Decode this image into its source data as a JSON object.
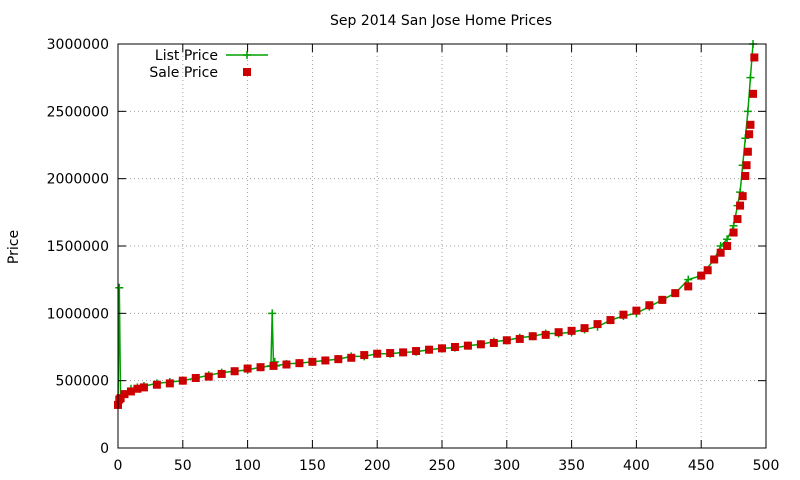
{
  "chart_data": {
    "type": "line",
    "title": "Sep 2014 San Jose Home Prices",
    "xlabel": "",
    "ylabel": "Price",
    "xlim": [
      0,
      500
    ],
    "ylim": [
      0,
      3000000
    ],
    "xticks": [
      "0",
      "50",
      "100",
      "150",
      "200",
      "250",
      "300",
      "350",
      "400",
      "450",
      "500"
    ],
    "yticks": [
      "0",
      "500000",
      "1000000",
      "1500000",
      "2000000",
      "2500000",
      "3000000"
    ],
    "grid": true,
    "legend_position": "top-left",
    "series": [
      {
        "name": "List Price",
        "style": "line+plus-markers",
        "color": "#00a000",
        "x": [
          0,
          1,
          2,
          5,
          10,
          15,
          20,
          30,
          40,
          50,
          60,
          70,
          80,
          90,
          100,
          110,
          118,
          119,
          120,
          121,
          122,
          130,
          140,
          150,
          160,
          170,
          180,
          190,
          200,
          210,
          220,
          230,
          240,
          250,
          260,
          270,
          280,
          290,
          300,
          310,
          320,
          330,
          340,
          350,
          360,
          370,
          380,
          390,
          400,
          410,
          420,
          430,
          440,
          450,
          460,
          465,
          470,
          475,
          478,
          480,
          482,
          484,
          486,
          488,
          490
        ],
        "y": [
          320000,
          1190000,
          350000,
          400000,
          440000,
          450000,
          460000,
          480000,
          490000,
          500000,
          520000,
          540000,
          560000,
          570000,
          580000,
          600000,
          610000,
          1000000,
          620000,
          640000,
          610000,
          625000,
          630000,
          640000,
          650000,
          660000,
          680000,
          680000,
          700000,
          700000,
          710000,
          715000,
          730000,
          740000,
          745000,
          760000,
          770000,
          790000,
          800000,
          820000,
          830000,
          850000,
          850000,
          860000,
          880000,
          900000,
          950000,
          980000,
          1000000,
          1050000,
          1100000,
          1150000,
          1250000,
          1280000,
          1400000,
          1500000,
          1550000,
          1650000,
          1800000,
          1900000,
          2100000,
          2300000,
          2500000,
          2750000,
          3000000
        ]
      },
      {
        "name": "Sale Price",
        "style": "filled-square-markers",
        "color": "#cc0000",
        "x": [
          0,
          1,
          2,
          5,
          10,
          15,
          20,
          30,
          40,
          50,
          60,
          70,
          80,
          90,
          100,
          110,
          120,
          130,
          140,
          150,
          160,
          170,
          180,
          190,
          200,
          210,
          220,
          230,
          240,
          250,
          260,
          270,
          280,
          290,
          300,
          310,
          320,
          330,
          340,
          350,
          360,
          370,
          380,
          390,
          400,
          410,
          420,
          430,
          440,
          450,
          455,
          460,
          465,
          470,
          475,
          478,
          480,
          482,
          484,
          485,
          486,
          487,
          488,
          490,
          491
        ],
        "y": [
          320000,
          360000,
          370000,
          400000,
          420000,
          440000,
          450000,
          470000,
          480000,
          500000,
          520000,
          530000,
          550000,
          570000,
          590000,
          600000,
          610000,
          620000,
          630000,
          640000,
          650000,
          660000,
          670000,
          690000,
          700000,
          705000,
          710000,
          720000,
          730000,
          740000,
          750000,
          760000,
          770000,
          780000,
          800000,
          810000,
          830000,
          840000,
          860000,
          870000,
          890000,
          920000,
          950000,
          990000,
          1020000,
          1060000,
          1100000,
          1150000,
          1200000,
          1280000,
          1320000,
          1400000,
          1450000,
          1500000,
          1600000,
          1700000,
          1800000,
          1870000,
          2020000,
          2100000,
          2200000,
          2330000,
          2400000,
          2630000,
          2900000
        ]
      }
    ]
  }
}
